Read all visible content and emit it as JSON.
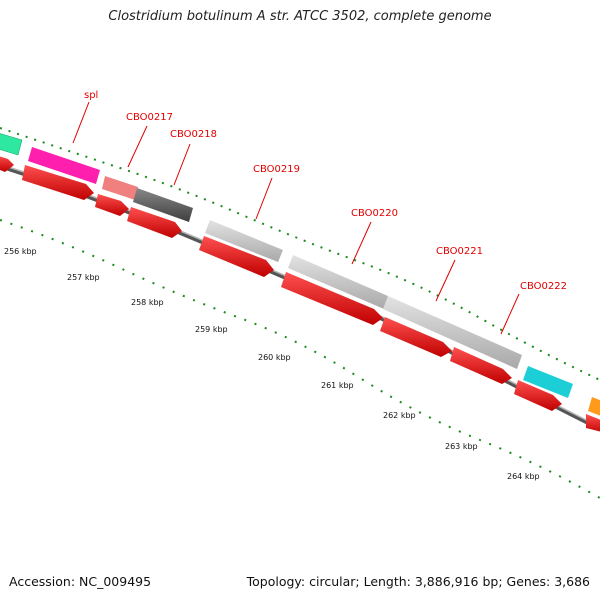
{
  "title": "Clostridium botulinum A str. ATCC 3502, complete genome",
  "footer": {
    "accession": "Accession: NC_009495",
    "stats": "Topology: circular; Length: 3,886,916 bp; Genes: 3,686"
  },
  "colors": {
    "backbone": "#7a7a7a",
    "tick": "#1c8a1c",
    "cds_reverse": "#ff1a1a",
    "label": "#e00000"
  },
  "kbp_labels": [
    "256 kbp",
    "257 kbp",
    "258 kbp",
    "259 kbp",
    "260 kbp",
    "261 kbp",
    "262 kbp",
    "263 kbp",
    "264 kbp"
  ],
  "gene_labels": [
    "spl",
    "CBO0217",
    "CBO0218",
    "CBO0219",
    "CBO0220",
    "CBO0221",
    "CBO0222"
  ],
  "features": [
    {
      "name": "feature-teal-left",
      "color": "#2ee8a0"
    },
    {
      "name": "spl",
      "color": "#ff1fae"
    },
    {
      "name": "CBO0217",
      "color": "#f08080"
    },
    {
      "name": "CBO0218",
      "color": "#666666"
    },
    {
      "name": "CBO0219",
      "color": "#c0c0c0"
    },
    {
      "name": "CBO0220",
      "color": "#c0c0c0"
    },
    {
      "name": "CBO0221",
      "color": "#c0c0c0"
    },
    {
      "name": "CBO0222",
      "color": "#c0c0c0"
    },
    {
      "name": "feature-cyan",
      "color": "#1ccfd6"
    },
    {
      "name": "feature-orange",
      "color": "#ff9a1a"
    }
  ]
}
